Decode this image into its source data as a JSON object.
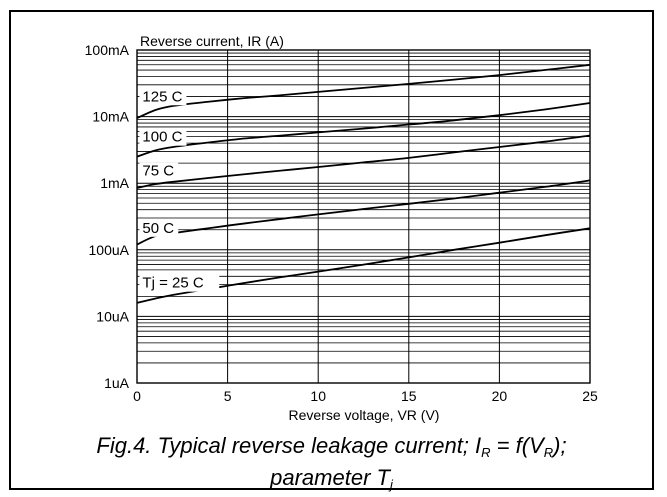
{
  "chart_data": {
    "type": "line",
    "title": "",
    "ylabel": "Reverse current, IR (A)",
    "xlabel": "Reverse voltage, VR (V)",
    "xlim": [
      0,
      25
    ],
    "ylim": [
      1e-06,
      0.1
    ],
    "y_scale": "log",
    "x_ticks": [
      0,
      5,
      10,
      15,
      20,
      25
    ],
    "x_tick_labels": [
      "0",
      "5",
      "10",
      "15",
      "20",
      "25"
    ],
    "y_ticks": [
      1e-06,
      1e-05,
      0.0001,
      0.001,
      0.01,
      0.1
    ],
    "y_tick_labels": [
      "1uA",
      "10uA",
      "100uA",
      "1mA",
      "10mA",
      "100mA"
    ],
    "grid": true,
    "series": [
      {
        "name": "125 C",
        "x": [
          0,
          1,
          2,
          4,
          6,
          8,
          10,
          12.5,
          15,
          17.5,
          20,
          22.5,
          25
        ],
        "y": [
          0.0095,
          0.0125,
          0.0145,
          0.0168,
          0.019,
          0.021,
          0.0235,
          0.027,
          0.031,
          0.036,
          0.042,
          0.05,
          0.06
        ]
      },
      {
        "name": "100 C",
        "x": [
          0,
          1,
          2,
          4,
          6,
          8,
          10,
          12.5,
          15,
          17.5,
          20,
          22.5,
          25
        ],
        "y": [
          0.0025,
          0.0031,
          0.0035,
          0.0041,
          0.0047,
          0.0052,
          0.0058,
          0.0066,
          0.0076,
          0.0088,
          0.0105,
          0.0128,
          0.016
        ]
      },
      {
        "name": "75 C",
        "x": [
          0,
          1,
          2,
          4,
          6,
          8,
          10,
          12.5,
          15,
          17.5,
          20,
          22.5,
          25
        ],
        "y": [
          0.00085,
          0.00097,
          0.00105,
          0.0012,
          0.00137,
          0.00155,
          0.00175,
          0.00205,
          0.0024,
          0.0029,
          0.0035,
          0.0042,
          0.0052
        ]
      },
      {
        "name": "50 C",
        "x": [
          0,
          1,
          2,
          4,
          6,
          8,
          10,
          12.5,
          15,
          17.5,
          20,
          22.5,
          25
        ],
        "y": [
          0.00012,
          0.00016,
          0.000178,
          0.000212,
          0.00025,
          0.000292,
          0.00034,
          0.00041,
          0.00049,
          0.00059,
          0.00072,
          0.00088,
          0.0011
        ]
      },
      {
        "name": "Tj = 25 C",
        "x": [
          0,
          1,
          2,
          4,
          6,
          8,
          10,
          12.5,
          15,
          17.5,
          20,
          22.5,
          25
        ],
        "y": [
          1.6e-05,
          1.85e-05,
          2.1e-05,
          2.6e-05,
          3.2e-05,
          3.9e-05,
          4.7e-05,
          6e-05,
          7.7e-05,
          0.0001,
          0.000128,
          0.000165,
          0.00021
        ]
      }
    ],
    "curve_label_anchor_x": 0.3,
    "curve_label_y": [
      0.017,
      0.0042,
      0.0013,
      0.00018,
      2.7e-05
    ]
  },
  "caption": {
    "fig_prefix": "Fig.4.  Typical reverse leakage current; ",
    "i_symbol": "I",
    "i_sub": "R",
    "eq_mid": " = f(",
    "v_symbol": "V",
    "v_sub": "R",
    "eq_end": ");",
    "line2_text": "parameter ",
    "t_symbol": "T",
    "t_sub": "j"
  }
}
